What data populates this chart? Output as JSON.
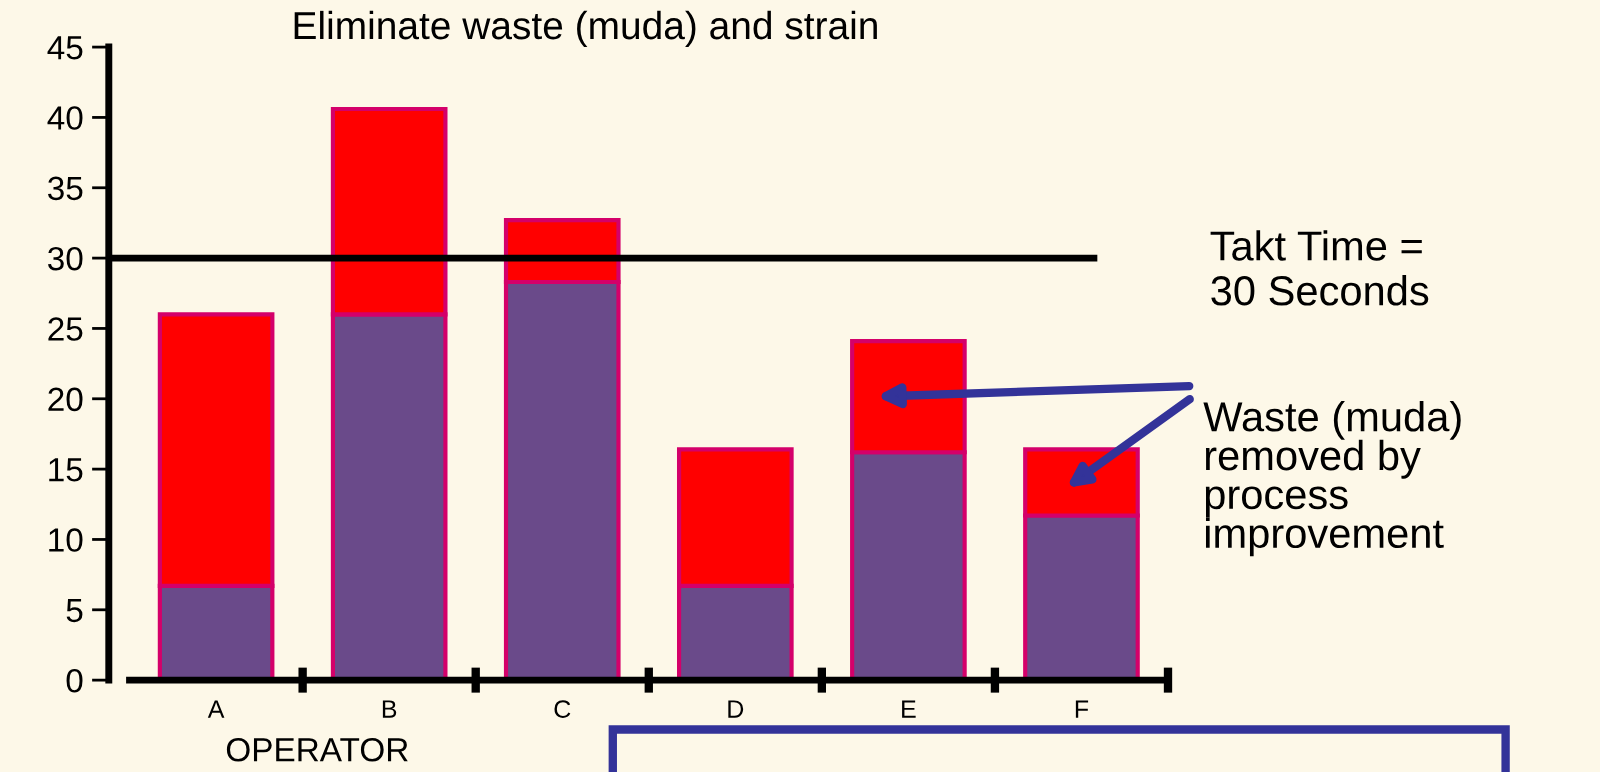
{
  "chart_data": {
    "type": "bar",
    "title": "Eliminate waste (muda) and strain",
    "xlabel": "OPERATOR",
    "categories": [
      "A",
      "B",
      "C",
      "D",
      "E",
      "F"
    ],
    "stacked": true,
    "series": [
      {
        "color": "#6a4a8a",
        "values": [
          6.7,
          26,
          28.3,
          6.7,
          16.2,
          11.7
        ]
      },
      {
        "color": "#ff0000",
        "values": [
          19.3,
          14.6,
          4.4,
          9.7,
          7.9,
          4.7
        ]
      }
    ],
    "ylim": [
      0,
      45
    ],
    "yticks": [
      0,
      5,
      10,
      15,
      20,
      25,
      30,
      35,
      40,
      45
    ],
    "grid": false,
    "legend": false,
    "ref_lines": [
      {
        "axis": "y",
        "value": 30,
        "label": "Takt Time =\n30 Seconds",
        "color": "#000000"
      }
    ],
    "annotations": [
      "Waste (muda)\nremoved by\nprocess\nimprovement"
    ]
  }
}
